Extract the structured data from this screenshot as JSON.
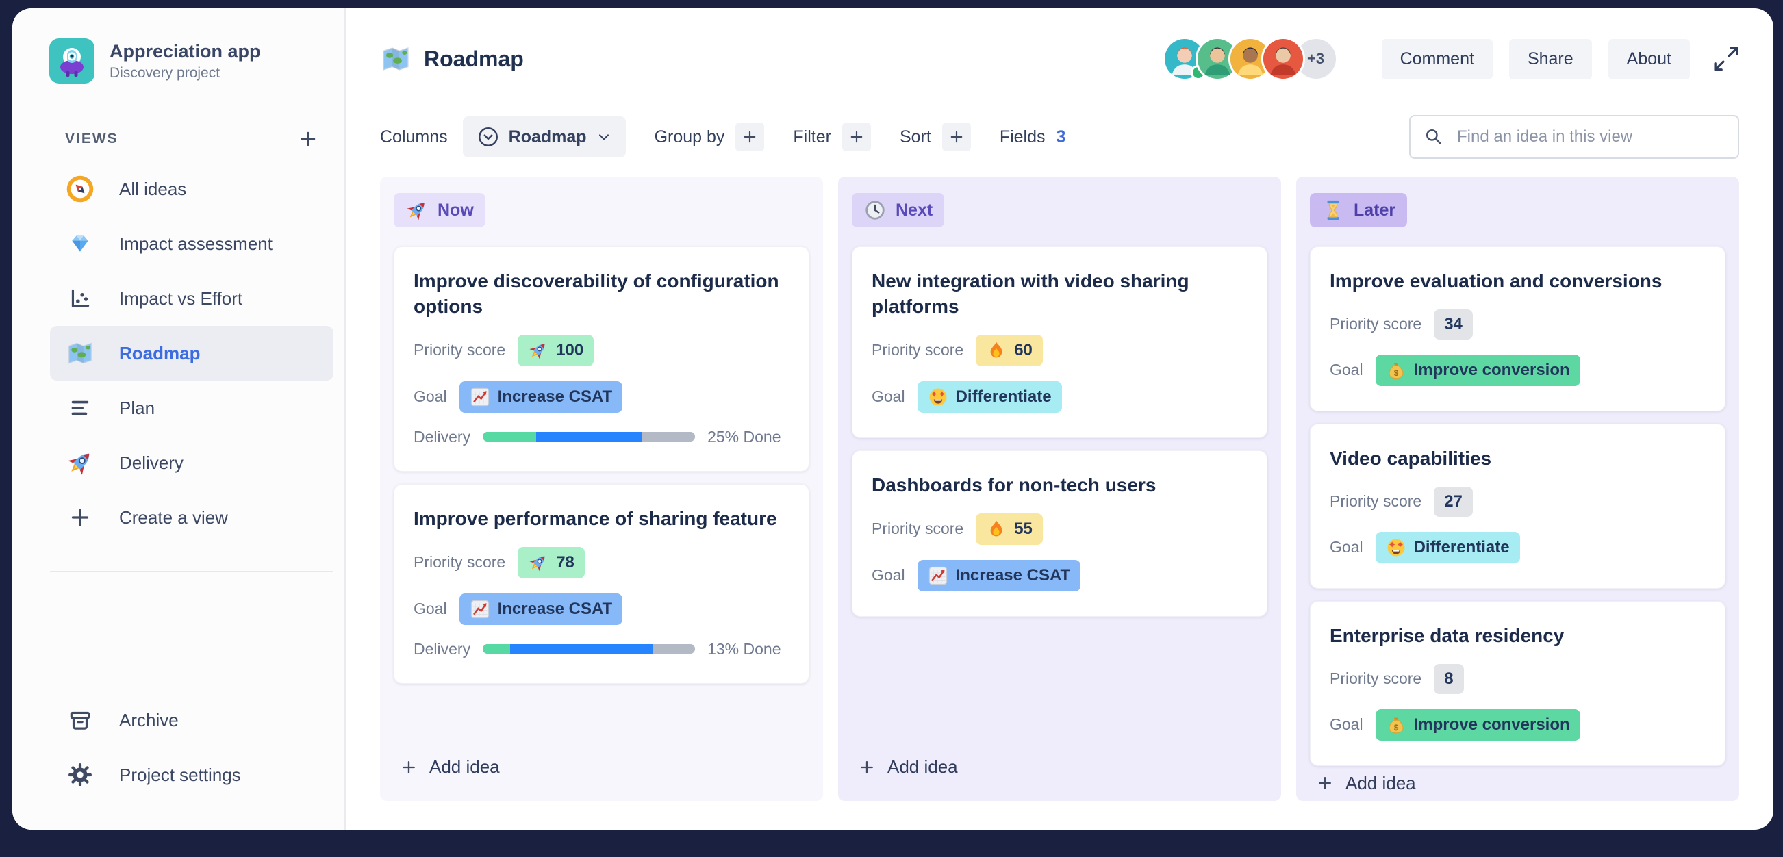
{
  "palette": {
    "canvas_bg": "#1a2040",
    "accent_blue": "#3b6ce0",
    "text_primary": "#1f2d4f",
    "text_secondary": "#707a8e",
    "column_now_bg": "#f7f6fc",
    "column_next_bg": "#efecfb",
    "column_later_bg": "#efecfb",
    "pill_now_bg": "#e6e0fa",
    "pill_next_bg": "#dcd5f7",
    "pill_later_bg": "#c9bbf2",
    "pill_purple_text": "#5a49b8",
    "score_green": "#a9f0c8",
    "score_yellow": "#f9e7a0",
    "score_gray": "#e3e4e8",
    "goal_blue": "#87b9f9",
    "goal_cyan": "#a7ebf3",
    "goal_green": "#5ed8a2",
    "progress_done_green": "#57d9a3",
    "progress_in_progress_blue": "#2684ff",
    "progress_todo_gray": "#b3bac5"
  },
  "sidebar": {
    "project_name": "Appreciation app",
    "project_type": "Discovery project",
    "project_icon": "monster-logo",
    "views_label": "VIEWS",
    "views": [
      {
        "icon": "compass",
        "label": "All ideas",
        "active": false
      },
      {
        "icon": "gem",
        "label": "Impact assessment",
        "active": false
      },
      {
        "icon": "scatter",
        "label": "Impact vs Effort",
        "active": false
      },
      {
        "icon": "map",
        "label": "Roadmap",
        "active": true
      },
      {
        "icon": "align-left",
        "label": "Plan",
        "active": false
      },
      {
        "icon": "rocket",
        "label": "Delivery",
        "active": false
      },
      {
        "icon": "plus",
        "label": "Create a view",
        "active": false
      }
    ],
    "footer_items": [
      {
        "icon": "archive",
        "label": "Archive"
      },
      {
        "icon": "gear",
        "label": "Project settings"
      }
    ]
  },
  "header": {
    "view_icon": "map",
    "title": "Roadmap",
    "avatars": [
      {
        "id": "avatar-1",
        "bg": "#35b9c8",
        "skin": "#f3cdb6",
        "hair": "#e2633c",
        "shirt": "#eef4f6",
        "online": true
      },
      {
        "id": "avatar-2",
        "bg": "#56bd8b",
        "skin": "#ecc39a",
        "hair": "#3f3430",
        "shirt": "#2f9e77",
        "online": false
      },
      {
        "id": "avatar-3",
        "bg": "#f2b23e",
        "skin": "#a9764f",
        "hair": "#2f2b3b",
        "shirt": "#ffd97a",
        "online": false
      },
      {
        "id": "avatar-4",
        "bg": "#e65840",
        "skin": "#ecc9a6",
        "hair": "#4f423c",
        "shirt": "#c23a2a",
        "online": false
      }
    ],
    "avatar_overflow": "+3",
    "buttons": [
      "Comment",
      "Share",
      "About"
    ]
  },
  "toolbar": {
    "columns_label": "Columns",
    "view_selector_label": "Roadmap",
    "group_by_label": "Group by",
    "filter_label": "Filter",
    "sort_label": "Sort",
    "fields_label": "Fields",
    "fields_count": "3",
    "search_placeholder": "Find an idea in this view"
  },
  "board": {
    "field_labels": {
      "priority": "Priority score",
      "goal": "Goal",
      "delivery": "Delivery"
    },
    "add_idea_label": "Add idea",
    "columns": [
      {
        "name": "Now",
        "icon": "rocket",
        "style": "now",
        "cards": [
          {
            "title": "Improve discoverability of configuration options",
            "priority": {
              "icon": "rocket",
              "value": "100",
              "color": "green"
            },
            "goal": {
              "icon": "chart-increasing",
              "label": "Increase CSAT",
              "color": "blue"
            },
            "delivery": {
              "done_label": "25% Done",
              "segments": {
                "done": 25,
                "in_progress": 50,
                "todo": 25
              }
            }
          },
          {
            "title": "Improve performance of sharing feature",
            "priority": {
              "icon": "rocket",
              "value": "78",
              "color": "green"
            },
            "goal": {
              "icon": "chart-increasing",
              "label": "Increase CSAT",
              "color": "blue"
            },
            "delivery": {
              "done_label": "13% Done",
              "segments": {
                "done": 13,
                "in_progress": 67,
                "todo": 20
              }
            }
          }
        ]
      },
      {
        "name": "Next",
        "icon": "clock",
        "style": "next",
        "cards": [
          {
            "title": "New integration with video sharing platforms",
            "priority": {
              "icon": "fire",
              "value": "60",
              "color": "yellow"
            },
            "goal": {
              "icon": "star-struck",
              "label": "Differentiate",
              "color": "cyan"
            }
          },
          {
            "title": "Dashboards for non-tech users",
            "priority": {
              "icon": "fire",
              "value": "55",
              "color": "yellow"
            },
            "goal": {
              "icon": "chart-increasing",
              "label": "Increase CSAT",
              "color": "blue"
            }
          }
        ]
      },
      {
        "name": "Later",
        "icon": "hourglass",
        "style": "later",
        "cards": [
          {
            "title": "Improve evaluation and conversions",
            "priority": {
              "icon": null,
              "value": "34",
              "color": "gray"
            },
            "goal": {
              "icon": "money-bag",
              "label": "Improve conversion",
              "color": "mint"
            }
          },
          {
            "title": "Video capabilities",
            "priority": {
              "icon": null,
              "value": "27",
              "color": "gray"
            },
            "goal": {
              "icon": "star-struck",
              "label": "Differentiate",
              "color": "cyan"
            }
          },
          {
            "title": "Enterprise data residency",
            "priority": {
              "icon": null,
              "value": "8",
              "color": "gray"
            },
            "goal": {
              "icon": "money-bag",
              "label": "Improve conversion",
              "color": "mint"
            }
          }
        ]
      }
    ]
  }
}
